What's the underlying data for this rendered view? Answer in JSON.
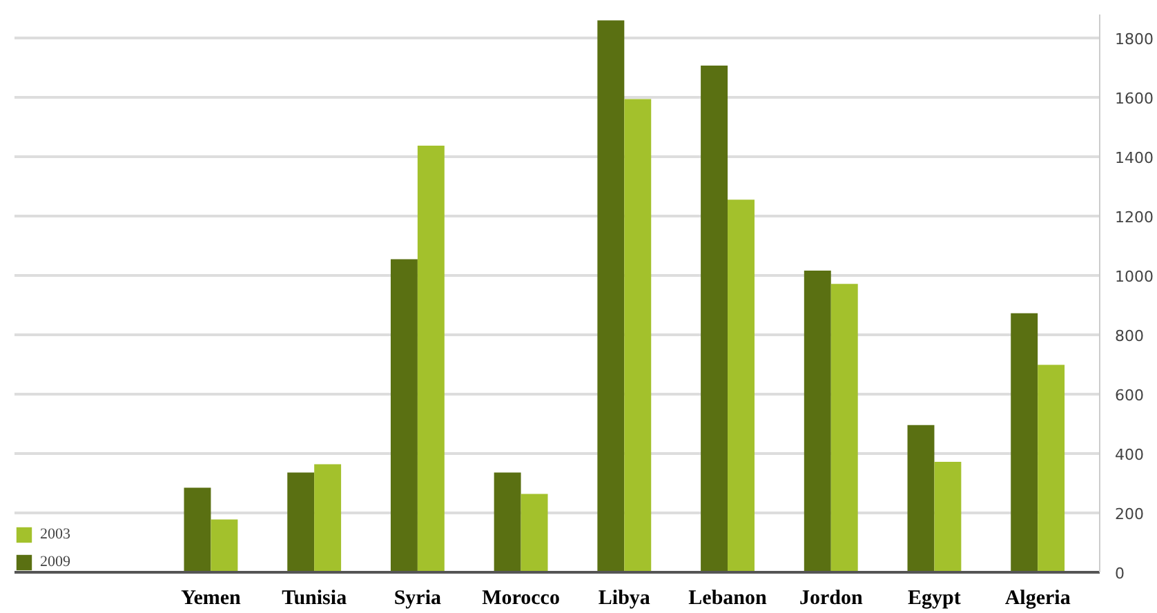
{
  "chart_data": {
    "type": "bar",
    "categories": [
      "Yemen",
      "Tunisia",
      "Syria",
      "Morocco",
      "Libya",
      "Lebanon",
      "Jordon",
      "Egypt",
      "Algeria"
    ],
    "series": [
      {
        "name": "2009",
        "color": "#5a7012",
        "values": [
          285,
          336,
          1055,
          336,
          1860,
          1708,
          1017,
          496,
          873
        ]
      },
      {
        "name": "2003",
        "color": "#a3c12c",
        "values": [
          178,
          364,
          1438,
          264,
          1595,
          1256,
          972,
          372,
          699
        ]
      }
    ],
    "ylim": [
      0,
      1880
    ],
    "yticks": [
      0,
      200,
      400,
      600,
      800,
      1000,
      1200,
      1400,
      1600,
      1800
    ],
    "grid": "y",
    "legend": "bottom left"
  }
}
